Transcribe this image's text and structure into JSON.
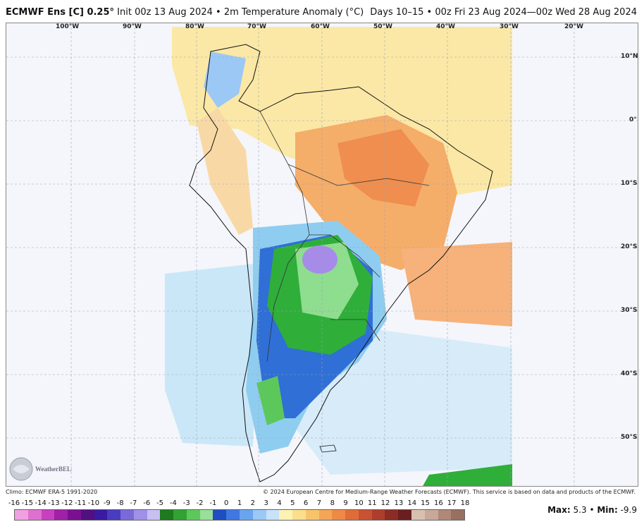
{
  "header": {
    "model": "ECMWF Ens [C] 0.25°",
    "init": "Init 00z 13 Aug 2024",
    "separator": "•",
    "field": "2m Temperature Anomaly (°C)",
    "valid": "Days 10–15 • 00z Fri 23 Aug 2024—00z Wed 28 Aug 2024"
  },
  "map": {
    "region": "South America",
    "longitude_labels": [
      "100°W",
      "90°W",
      "80°W",
      "70°W",
      "60°W",
      "50°W",
      "40°W",
      "30°W",
      "20°W"
    ],
    "latitude_labels": [
      "10°N",
      "0°",
      "10°S",
      "20°S",
      "30°S",
      "40°S",
      "50°S"
    ],
    "grid": true,
    "colors": {
      "ocean_background": "#f4f6fb",
      "warm_anomaly": "#f5a35a",
      "mild_warm": "#fbe39a",
      "cool_anomaly": "#8fcdf0",
      "strong_cool": "#2f6fd6",
      "green_cold": "#2fae3a",
      "purple_cold": "#a78be8"
    }
  },
  "logo": {
    "text": "WeatherBELL",
    "icon": "weatherbell-logo"
  },
  "credits": {
    "climo": "Climo: ECMWF ERA-5 1991-2020",
    "copyright": "© 2024 European Centre for Medium-Range Weather Forecasts (ECMWF). This service is based on data and products of the ECMWF."
  },
  "colorbar": {
    "labels": [
      "-16",
      "-15",
      "-14",
      "-13",
      "-12",
      "-11",
      "-10",
      "-9",
      "-8",
      "-7",
      "-6",
      "-5",
      "-4",
      "-3",
      "-2",
      "-1",
      "0",
      "1",
      "2",
      "3",
      "4",
      "5",
      "6",
      "7",
      "8",
      "9",
      "10",
      "11",
      "12",
      "13",
      "14",
      "15",
      "16",
      "17",
      "18"
    ],
    "colors": [
      "#f0a0e0",
      "#e070d0",
      "#c840c0",
      "#a020a8",
      "#7a1090",
      "#501080",
      "#3a1aa0",
      "#4a3cc0",
      "#7a6ad8",
      "#a090e8",
      "#c8bff2",
      "#1e7a1e",
      "#32a232",
      "#5cc85c",
      "#9ade9a",
      "#1e4ec0",
      "#3f78e0",
      "#6aa4f0",
      "#9cc8f6",
      "#c8e2fa",
      "#fbf2b4",
      "#fbdf8a",
      "#f8c46a",
      "#f4a656",
      "#ee8a46",
      "#e06c3a",
      "#c85232",
      "#ad3e2c",
      "#8c2c26",
      "#6a1e20",
      "#d8c0b0",
      "#c8a898",
      "#b08878",
      "#987060"
    ]
  },
  "stats": {
    "max_label": "Max:",
    "max": "5.3",
    "sep": "•",
    "min_label": "Min:",
    "min": "-9.9"
  }
}
